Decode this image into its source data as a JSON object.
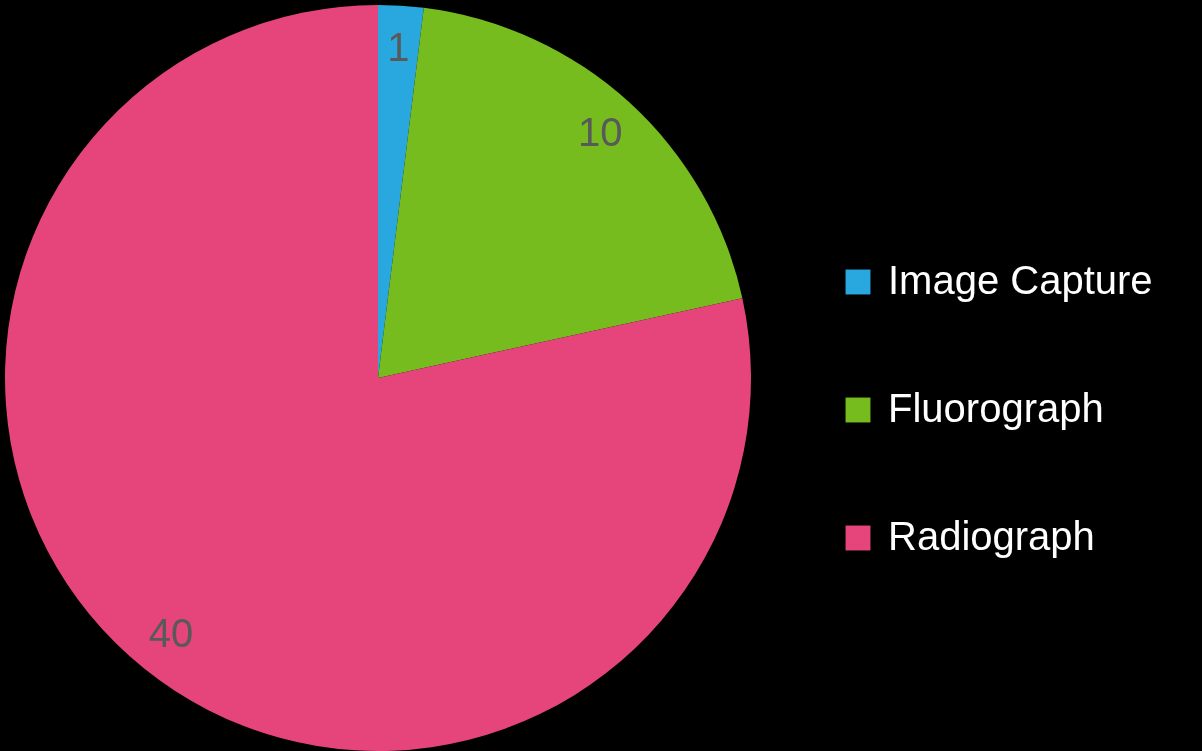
{
  "chart_data": {
    "type": "pie",
    "categories": [
      "Image Capture",
      "Fluorograph",
      "Radiograph"
    ],
    "values": [
      1,
      10,
      40
    ],
    "colors": [
      "#29a8e0",
      "#77bc1f",
      "#e5457a"
    ],
    "data_labels": true,
    "legend": "right"
  }
}
